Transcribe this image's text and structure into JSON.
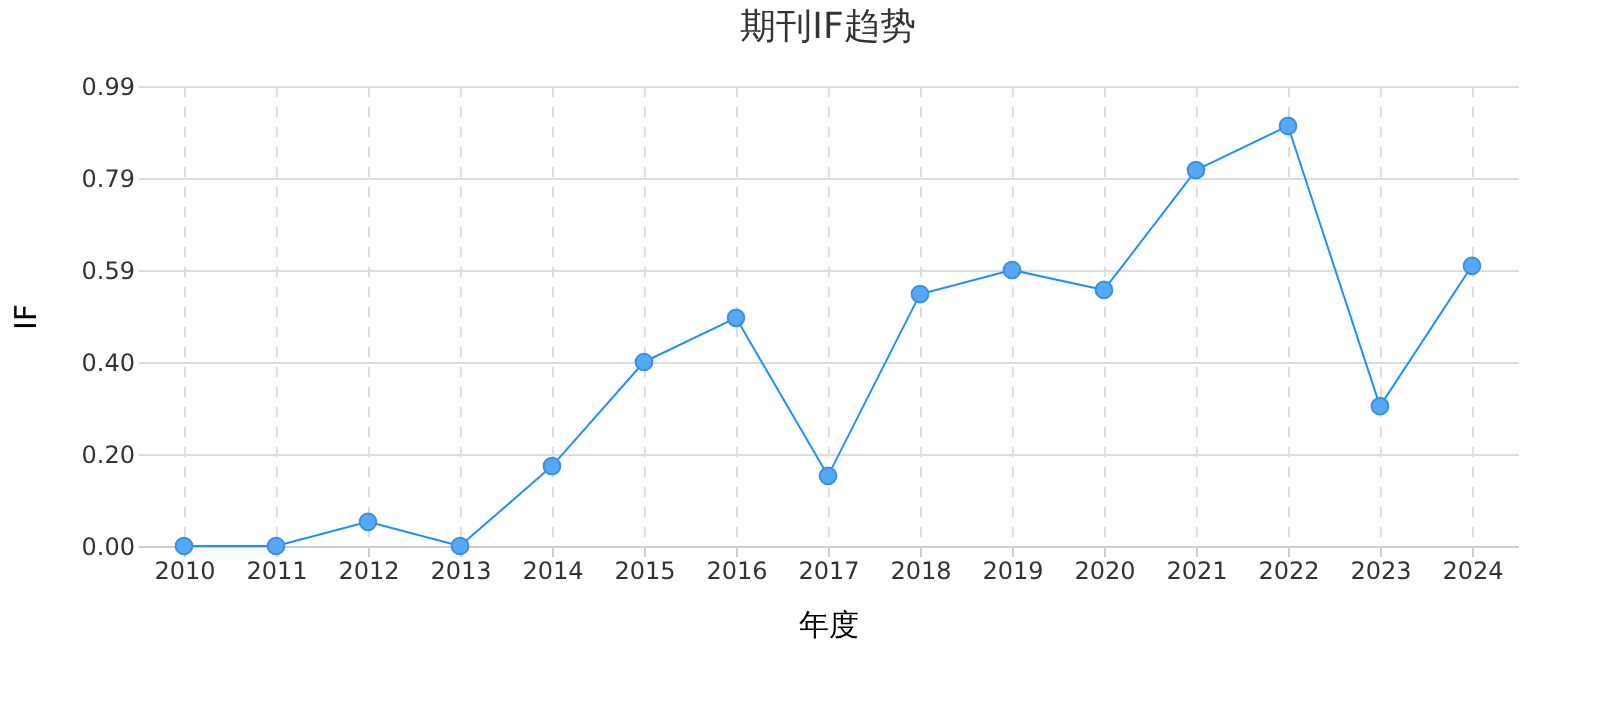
{
  "chart_data": {
    "type": "line",
    "title": "期刊IF趋势",
    "xlabel": "年度",
    "ylabel": "IF",
    "categories": [
      "2010",
      "2011",
      "2012",
      "2013",
      "2014",
      "2015",
      "2016",
      "2017",
      "2018",
      "2019",
      "2020",
      "2021",
      "2022",
      "2023",
      "2024"
    ],
    "series": [
      {
        "color": "#1e90ff",
        "values": [
          0,
          0,
          0.052,
          0,
          0.172,
          0.396,
          0.491,
          0.151,
          0.542,
          0.594,
          0.551,
          0.809,
          0.904,
          0.301,
          0.603
        ]
      }
    ],
    "ylim": [
      0,
      0.99
    ],
    "yticks": [
      {
        "value": 0,
        "label": "0.00"
      },
      {
        "value": 0.198,
        "label": "0.20"
      },
      {
        "value": 0.396,
        "label": "0.40"
      },
      {
        "value": 0.594,
        "label": "0.59"
      },
      {
        "value": 0.792,
        "label": "0.79"
      },
      {
        "value": 0.99,
        "label": "0.99"
      }
    ],
    "grid": true,
    "marker": "circle",
    "line_style": "solid"
  }
}
